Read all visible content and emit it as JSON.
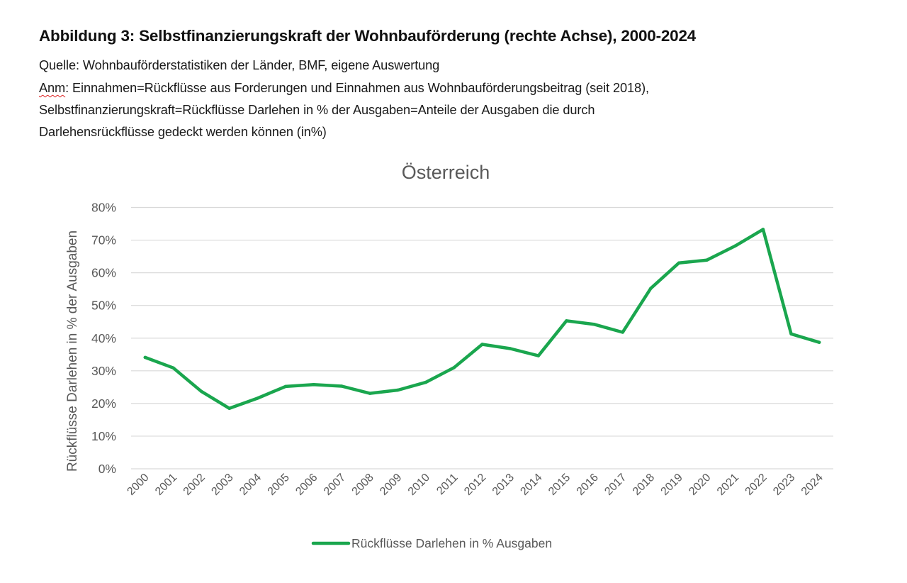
{
  "figure": {
    "title": "Abbildung 3: Selbstfinanzierungskraft der Wohnbauförderung (rechte Achse), 2000-2024",
    "source": "Quelle: Wohnbauförderstatistiken der Länder, BMF, eigene Auswertung",
    "note_prefix": "Anm",
    "note_line1_rest": ": Einnahmen=Rückflüsse aus Forderungen und Einnahmen aus Wohnbauförderungsbeitrag (seit 2018),",
    "note_line2": "Selbstfinanzierungskraft=Rückflüsse Darlehen in % der Ausgaben=Anteile der Ausgaben die durch",
    "note_line3": "Darlehensrückflüsse gedeckt werden können (in%)"
  },
  "chart_data": {
    "type": "line",
    "title": "Österreich",
    "xlabel": "",
    "ylabel": "Rückflüsse Darlehen in % der Ausgaben",
    "ylim": [
      0,
      80
    ],
    "yticks": [
      0,
      10,
      20,
      30,
      40,
      50,
      60,
      70,
      80
    ],
    "ytick_labels": [
      "0%",
      "10%",
      "20%",
      "30%",
      "40%",
      "50%",
      "60%",
      "70%",
      "80%"
    ],
    "grid": true,
    "legend_position": "bottom",
    "categories": [
      "2000",
      "2001",
      "2002",
      "2003",
      "2004",
      "2005",
      "2006",
      "2007",
      "2008",
      "2009",
      "2010",
      "2011",
      "2012",
      "2013",
      "2014",
      "2015",
      "2016",
      "2017",
      "2018",
      "2019",
      "2020",
      "2021",
      "2022",
      "2023",
      "2024"
    ],
    "series": [
      {
        "name": "Rückflüsse Darlehen in % Ausgaben",
        "color": "#1AA64E",
        "values": [
          34.1,
          30.9,
          23.7,
          18.5,
          21.6,
          25.2,
          25.8,
          25.3,
          23.1,
          24.1,
          26.5,
          31.0,
          38.1,
          36.8,
          34.6,
          45.3,
          44.2,
          41.8,
          55.2,
          63.0,
          63.9,
          68.2,
          73.3,
          41.3,
          38.7
        ]
      }
    ],
    "gridline_color": "#d9d9d9",
    "text_color": "#595959"
  }
}
